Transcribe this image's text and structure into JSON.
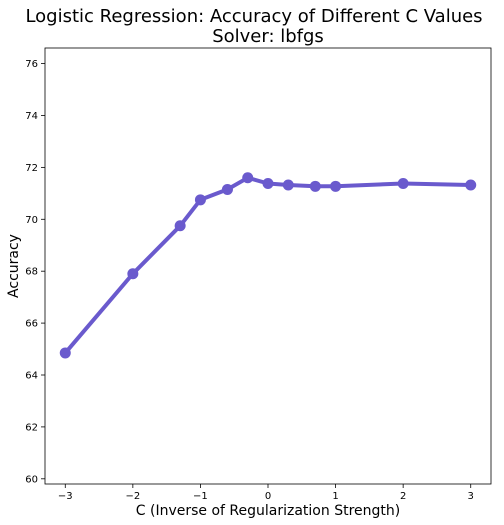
{
  "chart_data": {
    "type": "line",
    "title": "Logistic Regression: Accuracy of Different C Values",
    "subtitle": "Solver: lbfgs",
    "xlabel": "C (Inverse of Regularization Strength)",
    "ylabel": "Accuracy",
    "xlim": [
      -3.3,
      3.3
    ],
    "ylim": [
      59.8,
      76.6
    ],
    "x_ticks": [
      -3,
      -2,
      -1,
      0,
      1,
      2,
      3
    ],
    "y_ticks": [
      60,
      62,
      64,
      66,
      68,
      70,
      72,
      74,
      76
    ],
    "series": [
      {
        "color": "#6a5acd",
        "x": [
          -3,
          -2,
          -1.3,
          -1,
          -0.6,
          -0.3,
          0,
          0.3,
          0.7,
          1,
          2,
          3
        ],
        "y": [
          64.85,
          67.9,
          69.75,
          70.75,
          71.15,
          71.6,
          71.38,
          71.32,
          71.27,
          71.27,
          71.38,
          71.32
        ]
      }
    ],
    "grid": false,
    "legend": "none"
  }
}
